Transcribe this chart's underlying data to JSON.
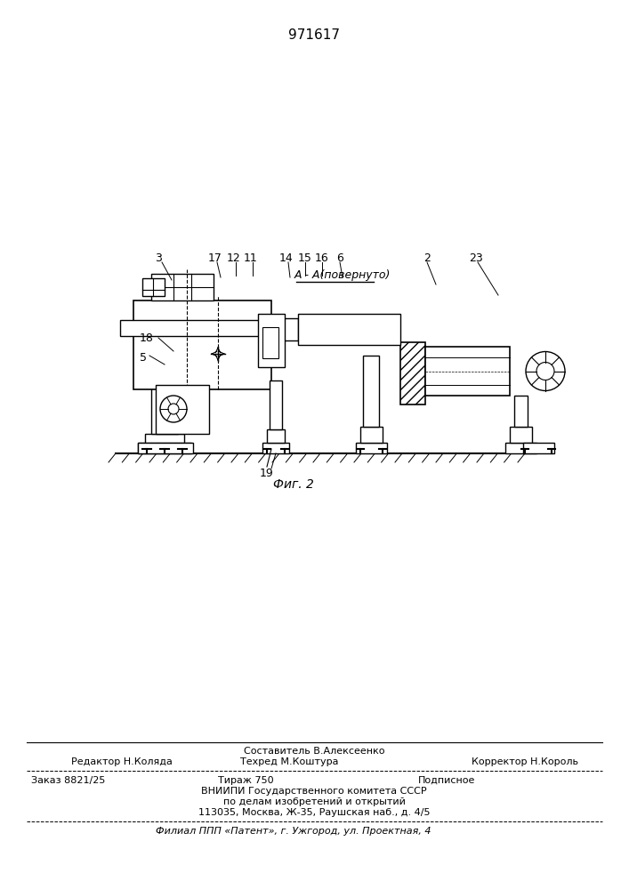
{
  "patent_number": "971617",
  "fig_label": "Фиг. 2",
  "section_label": "А - А(повернуто)",
  "footer_line1_center_top": "Составитель В.Алексеенко",
  "footer_line1_left": "Редактор Н.Коляда",
  "footer_line1_center": "Техред М.Коштура",
  "footer_line1_right": "Корректор Н.Король",
  "footer_line2_col1": "Заказ 8821/25",
  "footer_line2_col2": "Тираж 750",
  "footer_line2_col3": "Подписное",
  "footer_line3": "ВНИИПИ Государственного комитета СССР",
  "footer_line4": "по делам изобретений и открытий",
  "footer_line5": "113035, Москва, Ж-35, Раушская наб., д. 4/5",
  "footer_line6": "Филиал ППП «Патент», г. Ужгород, ул. Проектная, 4",
  "bg_color": "#ffffff",
  "line_color": "#000000"
}
